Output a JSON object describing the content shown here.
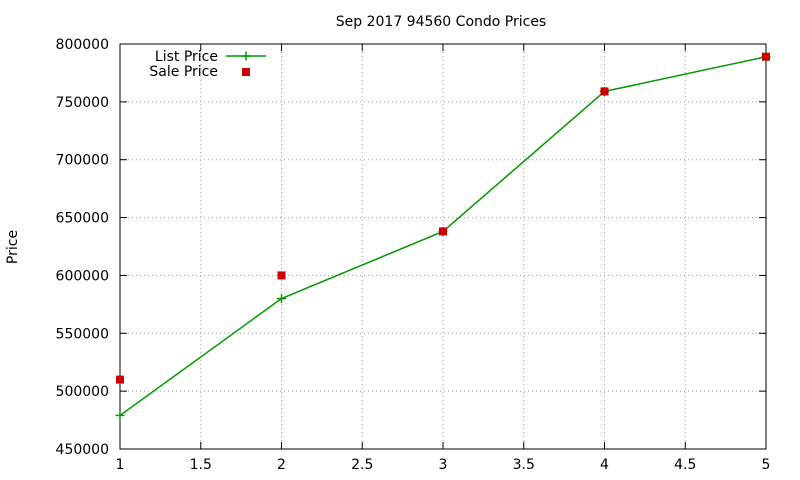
{
  "chart_data": {
    "type": "line",
    "title": "Sep 2017 94560 Condo Prices",
    "ylabel": "Price",
    "xlim": [
      1,
      5
    ],
    "ylim": [
      450000,
      800000
    ],
    "xticks": [
      1,
      1.5,
      2,
      2.5,
      3,
      3.5,
      4,
      4.5,
      5
    ],
    "xtick_labels": [
      "1",
      "1.5",
      "2",
      "2.5",
      "3",
      "3.5",
      "4",
      "4.5",
      "5"
    ],
    "yticks": [
      450000,
      500000,
      550000,
      600000,
      650000,
      700000,
      750000,
      800000
    ],
    "ytick_labels": [
      "450000",
      "500000",
      "550000",
      "600000",
      "650000",
      "700000",
      "750000",
      "800000"
    ],
    "grid": true,
    "legend_position": "top-left",
    "series": [
      {
        "name": "List Price",
        "style": "line-plus",
        "color": "#009900",
        "x": [
          1,
          2,
          3,
          4,
          5
        ],
        "y": [
          479000,
          580000,
          638000,
          759000,
          789000
        ]
      },
      {
        "name": "Sale Price",
        "style": "square-points",
        "color": "#cc0000",
        "x": [
          1,
          2,
          3,
          4,
          5
        ],
        "y": [
          510000,
          600000,
          638000,
          759000,
          789000
        ]
      }
    ]
  }
}
